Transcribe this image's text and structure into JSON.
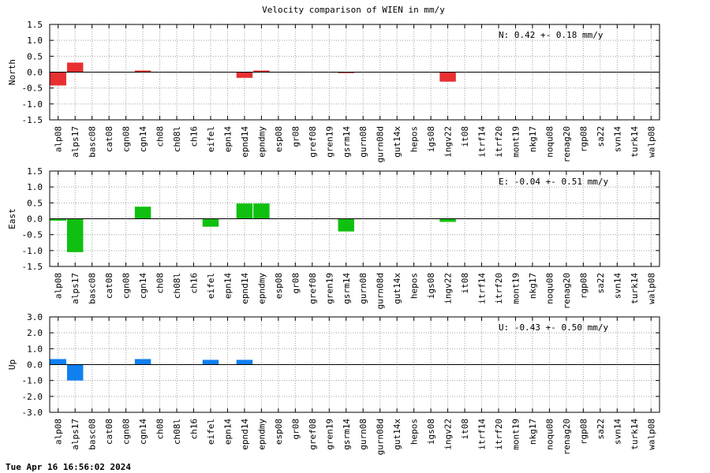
{
  "chart_data": {
    "type": "bar",
    "title": "Velocity comparison of WIEN in mm/y",
    "categories": [
      "alp08",
      "alps17",
      "basc08",
      "cat08",
      "cgn08",
      "cgn14",
      "ch08",
      "ch08l",
      "ch16",
      "eifel",
      "epn14",
      "epnd14",
      "epndmy",
      "esp08",
      "gr08",
      "gref08",
      "gren19",
      "gsrm14",
      "gurn08",
      "gurn08d",
      "gut14x",
      "hepos",
      "igs08",
      "ingv22",
      "it08",
      "itrf14",
      "itrf20",
      "mont19",
      "nkg17",
      "noqu08",
      "renag20",
      "rgp08",
      "sa22",
      "svn14",
      "turk14",
      "walp08"
    ],
    "panels": [
      {
        "ylabel": "North",
        "ylim": [
          -1.5,
          1.5
        ],
        "ticks": [
          "1.5",
          "1.0",
          "0.5",
          "0.0",
          "-0.5",
          "-1.0",
          "-1.5"
        ],
        "tick_values": [
          1.5,
          1.0,
          0.5,
          0.0,
          -0.5,
          -1.0,
          -1.5
        ],
        "color": "#e83030",
        "annotation": "N:   0.42 +-  0.18 mm/y",
        "values": [
          -0.42,
          0.3,
          0,
          0,
          0,
          0.05,
          0,
          0,
          0,
          0,
          0,
          -0.18,
          0.05,
          0,
          0,
          0,
          0,
          -0.03,
          0,
          0,
          0,
          0,
          0,
          -0.3,
          0,
          0,
          0,
          0,
          0,
          0,
          0,
          0,
          0,
          0,
          0,
          0
        ]
      },
      {
        "ylabel": "East",
        "ylim": [
          -1.5,
          1.5
        ],
        "ticks": [
          "1.5",
          "1.0",
          "0.5",
          "0.0",
          "-0.5",
          "-1.0",
          "-1.5"
        ],
        "tick_values": [
          1.5,
          1.0,
          0.5,
          0.0,
          -0.5,
          -1.0,
          -1.5
        ],
        "color": "#10c010",
        "annotation": "E:  -0.04 +-  0.51 mm/y",
        "values": [
          -0.06,
          -1.05,
          0,
          0,
          0,
          0.38,
          0,
          0,
          0,
          -0.25,
          0,
          0.48,
          0.48,
          0,
          0,
          0,
          0,
          -0.4,
          0,
          0,
          0,
          0,
          0,
          -0.1,
          0,
          0,
          0,
          0,
          0,
          0,
          0,
          0,
          0,
          0,
          0,
          0
        ]
      },
      {
        "ylabel": "Up",
        "ylim": [
          -3.0,
          3.0
        ],
        "ticks": [
          "3.0",
          "2.0",
          "1.0",
          "0.0",
          "-1.0",
          "-2.0",
          "-3.0"
        ],
        "tick_values": [
          3.0,
          2.0,
          1.0,
          0.0,
          -1.0,
          -2.0,
          -3.0
        ],
        "color": "#1080f0",
        "annotation": "U:  -0.43 +-  0.50 mm/y",
        "values": [
          0.35,
          -1.0,
          0,
          0,
          0,
          0.35,
          0,
          0,
          0,
          0.3,
          0,
          0.3,
          0,
          0,
          0,
          0,
          0,
          0,
          0,
          0,
          0,
          0,
          0,
          0,
          0,
          0,
          0,
          0,
          0,
          0,
          0,
          0,
          0,
          0,
          0,
          0
        ]
      }
    ]
  },
  "footer": "Tue Apr 16 16:56:02 2024"
}
